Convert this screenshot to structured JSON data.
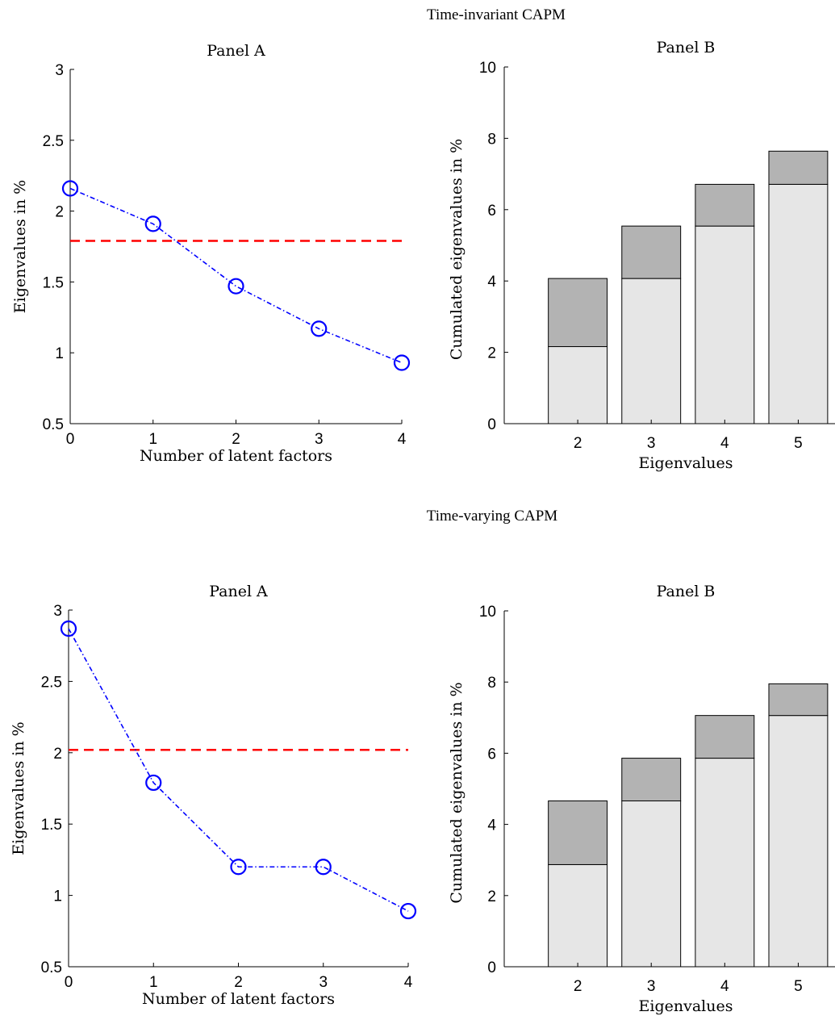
{
  "chart_data": [
    {
      "type": "line",
      "section_title": "Time-invariant CAPM",
      "title": "Panel A",
      "xlabel": "Number of latent factors",
      "ylabel": "Eigenvalues in %",
      "x": [
        0,
        1,
        2,
        3,
        4
      ],
      "series": [
        {
          "values": [
            2.16,
            1.91,
            1.47,
            1.17,
            0.93
          ],
          "color": "#0000ff",
          "style": "dash-dot",
          "marker": "circle"
        }
      ],
      "threshold": {
        "value": 1.79,
        "color": "#ff0000",
        "style": "dashed"
      },
      "xlim": [
        0,
        4
      ],
      "ylim": [
        0.5,
        3
      ],
      "xticks": [
        "0",
        "1",
        "2",
        "3",
        "4"
      ],
      "yticks": [
        "0.5",
        "1",
        "1.5",
        "2",
        "2.5",
        "3"
      ],
      "grid": false
    },
    {
      "type": "bar",
      "title": "Panel B",
      "xlabel": "Eigenvalues",
      "ylabel": "Cumulated eigenvalues in %",
      "categories": [
        "2",
        "3",
        "4",
        "5"
      ],
      "stacked": true,
      "series": [
        {
          "values": [
            2.16,
            4.07,
            5.54,
            6.71
          ],
          "color": "#e6e6e6"
        },
        {
          "values": [
            1.91,
            1.47,
            1.17,
            0.93
          ],
          "color": "#b3b3b3"
        }
      ],
      "ylim": [
        0,
        10
      ],
      "yticks": [
        "0",
        "2",
        "4",
        "6",
        "8",
        "10"
      ],
      "grid": false
    },
    {
      "type": "line",
      "section_title": "Time-varying CAPM",
      "title": "Panel A",
      "xlabel": "Number of latent factors",
      "ylabel": "Eigenvalues in %",
      "x": [
        0,
        1,
        2,
        3,
        4
      ],
      "series": [
        {
          "values": [
            2.87,
            1.79,
            1.2,
            1.2,
            0.89
          ],
          "color": "#0000ff",
          "style": "dash-dot",
          "marker": "circle"
        }
      ],
      "threshold": {
        "value": 2.02,
        "color": "#ff0000",
        "style": "dashed"
      },
      "xlim": [
        0,
        4
      ],
      "ylim": [
        0.5,
        3
      ],
      "xticks": [
        "0",
        "1",
        "2",
        "3",
        "4"
      ],
      "yticks": [
        "0.5",
        "1",
        "1.5",
        "2",
        "2.5",
        "3"
      ],
      "grid": false
    },
    {
      "type": "bar",
      "title": "Panel B",
      "xlabel": "Eigenvalues",
      "ylabel": "Cumulated eigenvalues in %",
      "categories": [
        "2",
        "3",
        "4",
        "5"
      ],
      "stacked": true,
      "series": [
        {
          "values": [
            2.87,
            4.66,
            5.86,
            7.06
          ],
          "color": "#e6e6e6"
        },
        {
          "values": [
            1.79,
            1.2,
            1.2,
            0.89
          ],
          "color": "#b3b3b3"
        }
      ],
      "ylim": [
        0,
        10
      ],
      "yticks": [
        "0",
        "2",
        "4",
        "6",
        "8",
        "10"
      ],
      "grid": false
    }
  ]
}
